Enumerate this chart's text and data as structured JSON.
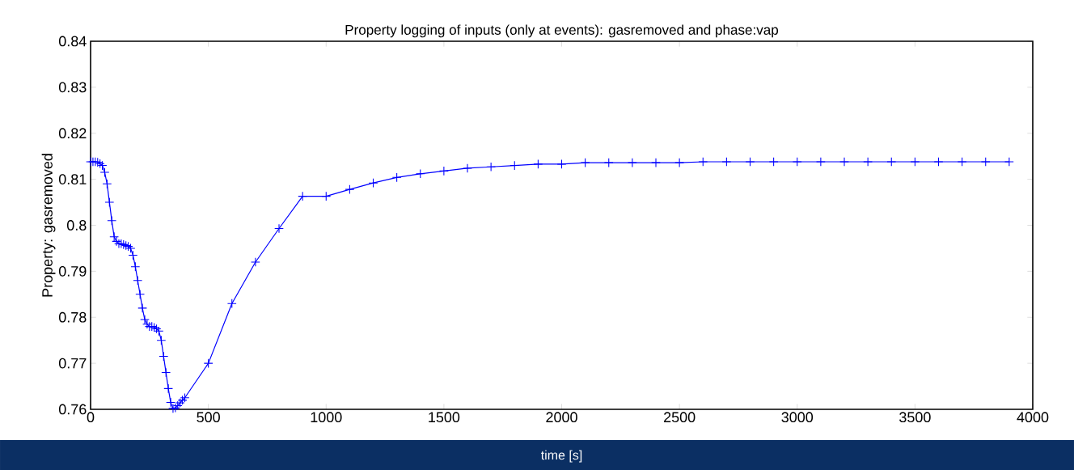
{
  "chart_data": {
    "type": "line",
    "title": "Property logging of inputs (only at events): gasremoved and phase:vap",
    "xlabel": "time [s]",
    "ylabel": "Property: gasremoved",
    "xlim": [
      0,
      4000
    ],
    "ylim": [
      0.76,
      0.84
    ],
    "xticks": [
      0,
      500,
      1000,
      1500,
      2000,
      2500,
      3000,
      3500,
      4000
    ],
    "yticks": [
      0.76,
      0.77,
      0.78,
      0.79,
      0.8,
      0.81,
      0.82,
      0.83,
      0.84
    ],
    "marker": "cross",
    "line_style": "solid",
    "series": [
      {
        "color": "#0000ff",
        "x": [
          0,
          10,
          20,
          30,
          40,
          50,
          60,
          70,
          80,
          90,
          100,
          110,
          120,
          130,
          140,
          150,
          160,
          170,
          180,
          190,
          200,
          210,
          220,
          230,
          240,
          250,
          260,
          270,
          280,
          290,
          300,
          310,
          320,
          330,
          340,
          350,
          360,
          370,
          380,
          390,
          400,
          500,
          600,
          700,
          800,
          900,
          1000,
          1100,
          1200,
          1300,
          1400,
          1500,
          1600,
          1700,
          1800,
          1900,
          2000,
          2100,
          2200,
          2300,
          2400,
          2500,
          2600,
          2700,
          2800,
          2900,
          3000,
          3100,
          3200,
          3300,
          3400,
          3500,
          3600,
          3700,
          3800,
          3900
        ],
        "values": [
          0.8138,
          0.8138,
          0.8138,
          0.8137,
          0.8134,
          0.813,
          0.8115,
          0.809,
          0.805,
          0.801,
          0.7975,
          0.7965,
          0.796,
          0.796,
          0.7958,
          0.7956,
          0.7954,
          0.795,
          0.7935,
          0.791,
          0.788,
          0.785,
          0.782,
          0.7795,
          0.7785,
          0.778,
          0.778,
          0.7778,
          0.7775,
          0.777,
          0.775,
          0.7715,
          0.768,
          0.7645,
          0.7615,
          0.7602,
          0.7603,
          0.7608,
          0.7614,
          0.762,
          0.7625,
          0.77,
          0.783,
          0.792,
          0.7993,
          0.8063,
          0.8063,
          0.8078,
          0.8092,
          0.8104,
          0.8112,
          0.8118,
          0.8124,
          0.8127,
          0.813,
          0.8133,
          0.8133,
          0.8136,
          0.8136,
          0.8136,
          0.8136,
          0.8136,
          0.8138,
          0.8138,
          0.8138,
          0.8138,
          0.8138,
          0.8138,
          0.8138,
          0.8138,
          0.8138,
          0.8138,
          0.8138,
          0.8138,
          0.8138,
          0.8138
        ]
      }
    ]
  }
}
